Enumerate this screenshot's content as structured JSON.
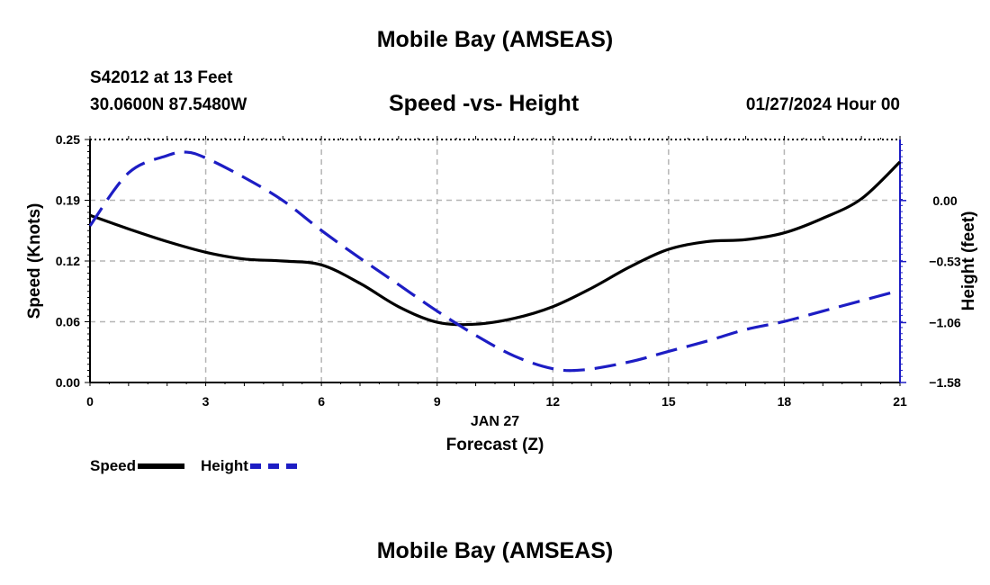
{
  "page": {
    "title": "Mobile Bay (AMSEAS)",
    "bottom_title": "Mobile Bay (AMSEAS)",
    "station": "S42012 at 13 Feet",
    "coords": "30.0600N  87.5480W",
    "datetime": "01/27/2024 Hour 00"
  },
  "legend": {
    "speed_label": "Speed",
    "height_label": "Height"
  },
  "chart_data": {
    "type": "line",
    "title": "Speed -vs- Height",
    "xlabel": "Forecast (Z)",
    "xlabel_date": "JAN 27",
    "ylabel": "Speed (Knots)",
    "y2label": "Height (feet)",
    "xlim": [
      0,
      21
    ],
    "ylim": [
      0,
      0.25
    ],
    "y2lim": [
      -1.58,
      0.53
    ],
    "x_ticks": [
      0,
      3,
      6,
      9,
      12,
      15,
      18,
      21
    ],
    "x_tick_labels": [
      "0",
      "3",
      "6",
      "9",
      "12",
      "15",
      "18",
      "21"
    ],
    "y_ticks": [
      0,
      0.0625,
      0.125,
      0.1875,
      0.25
    ],
    "y_tick_labels": [
      "0.00",
      "0.06",
      "0.12",
      "0.19",
      "0.25"
    ],
    "y2_ticks": [
      -1.58,
      -1.06,
      -0.53,
      0.0
    ],
    "y2_tick_labels": [
      "−1.58",
      "−1.06",
      "−0.53",
      "0.00"
    ],
    "grid": true,
    "series": [
      {
        "name": "Speed",
        "axis": "left",
        "color": "#000000",
        "style": "solid",
        "x": [
          0,
          1,
          2,
          3,
          4,
          5,
          6,
          7,
          8,
          9,
          10,
          11,
          12,
          13,
          14,
          15,
          16,
          17,
          18,
          19,
          20,
          21
        ],
        "values": [
          0.172,
          0.158,
          0.145,
          0.134,
          0.127,
          0.125,
          0.121,
          0.102,
          0.078,
          0.062,
          0.06,
          0.066,
          0.078,
          0.097,
          0.119,
          0.137,
          0.145,
          0.147,
          0.154,
          0.169,
          0.189,
          0.227
        ]
      },
      {
        "name": "Height",
        "axis": "right",
        "color": "#1d1dc4",
        "style": "dashed",
        "x": [
          0,
          1,
          2,
          2.5,
          3,
          4,
          5,
          6,
          7,
          8,
          9,
          10,
          11,
          12,
          12.8,
          14,
          15,
          16,
          17,
          18,
          19,
          20,
          21
        ],
        "values": [
          -0.22,
          0.24,
          0.39,
          0.42,
          0.37,
          0.2,
          0.0,
          -0.26,
          -0.5,
          -0.73,
          -0.96,
          -1.17,
          -1.35,
          -1.46,
          -1.47,
          -1.4,
          -1.31,
          -1.22,
          -1.12,
          -1.05,
          -0.96,
          -0.87,
          -0.78
        ]
      }
    ]
  }
}
